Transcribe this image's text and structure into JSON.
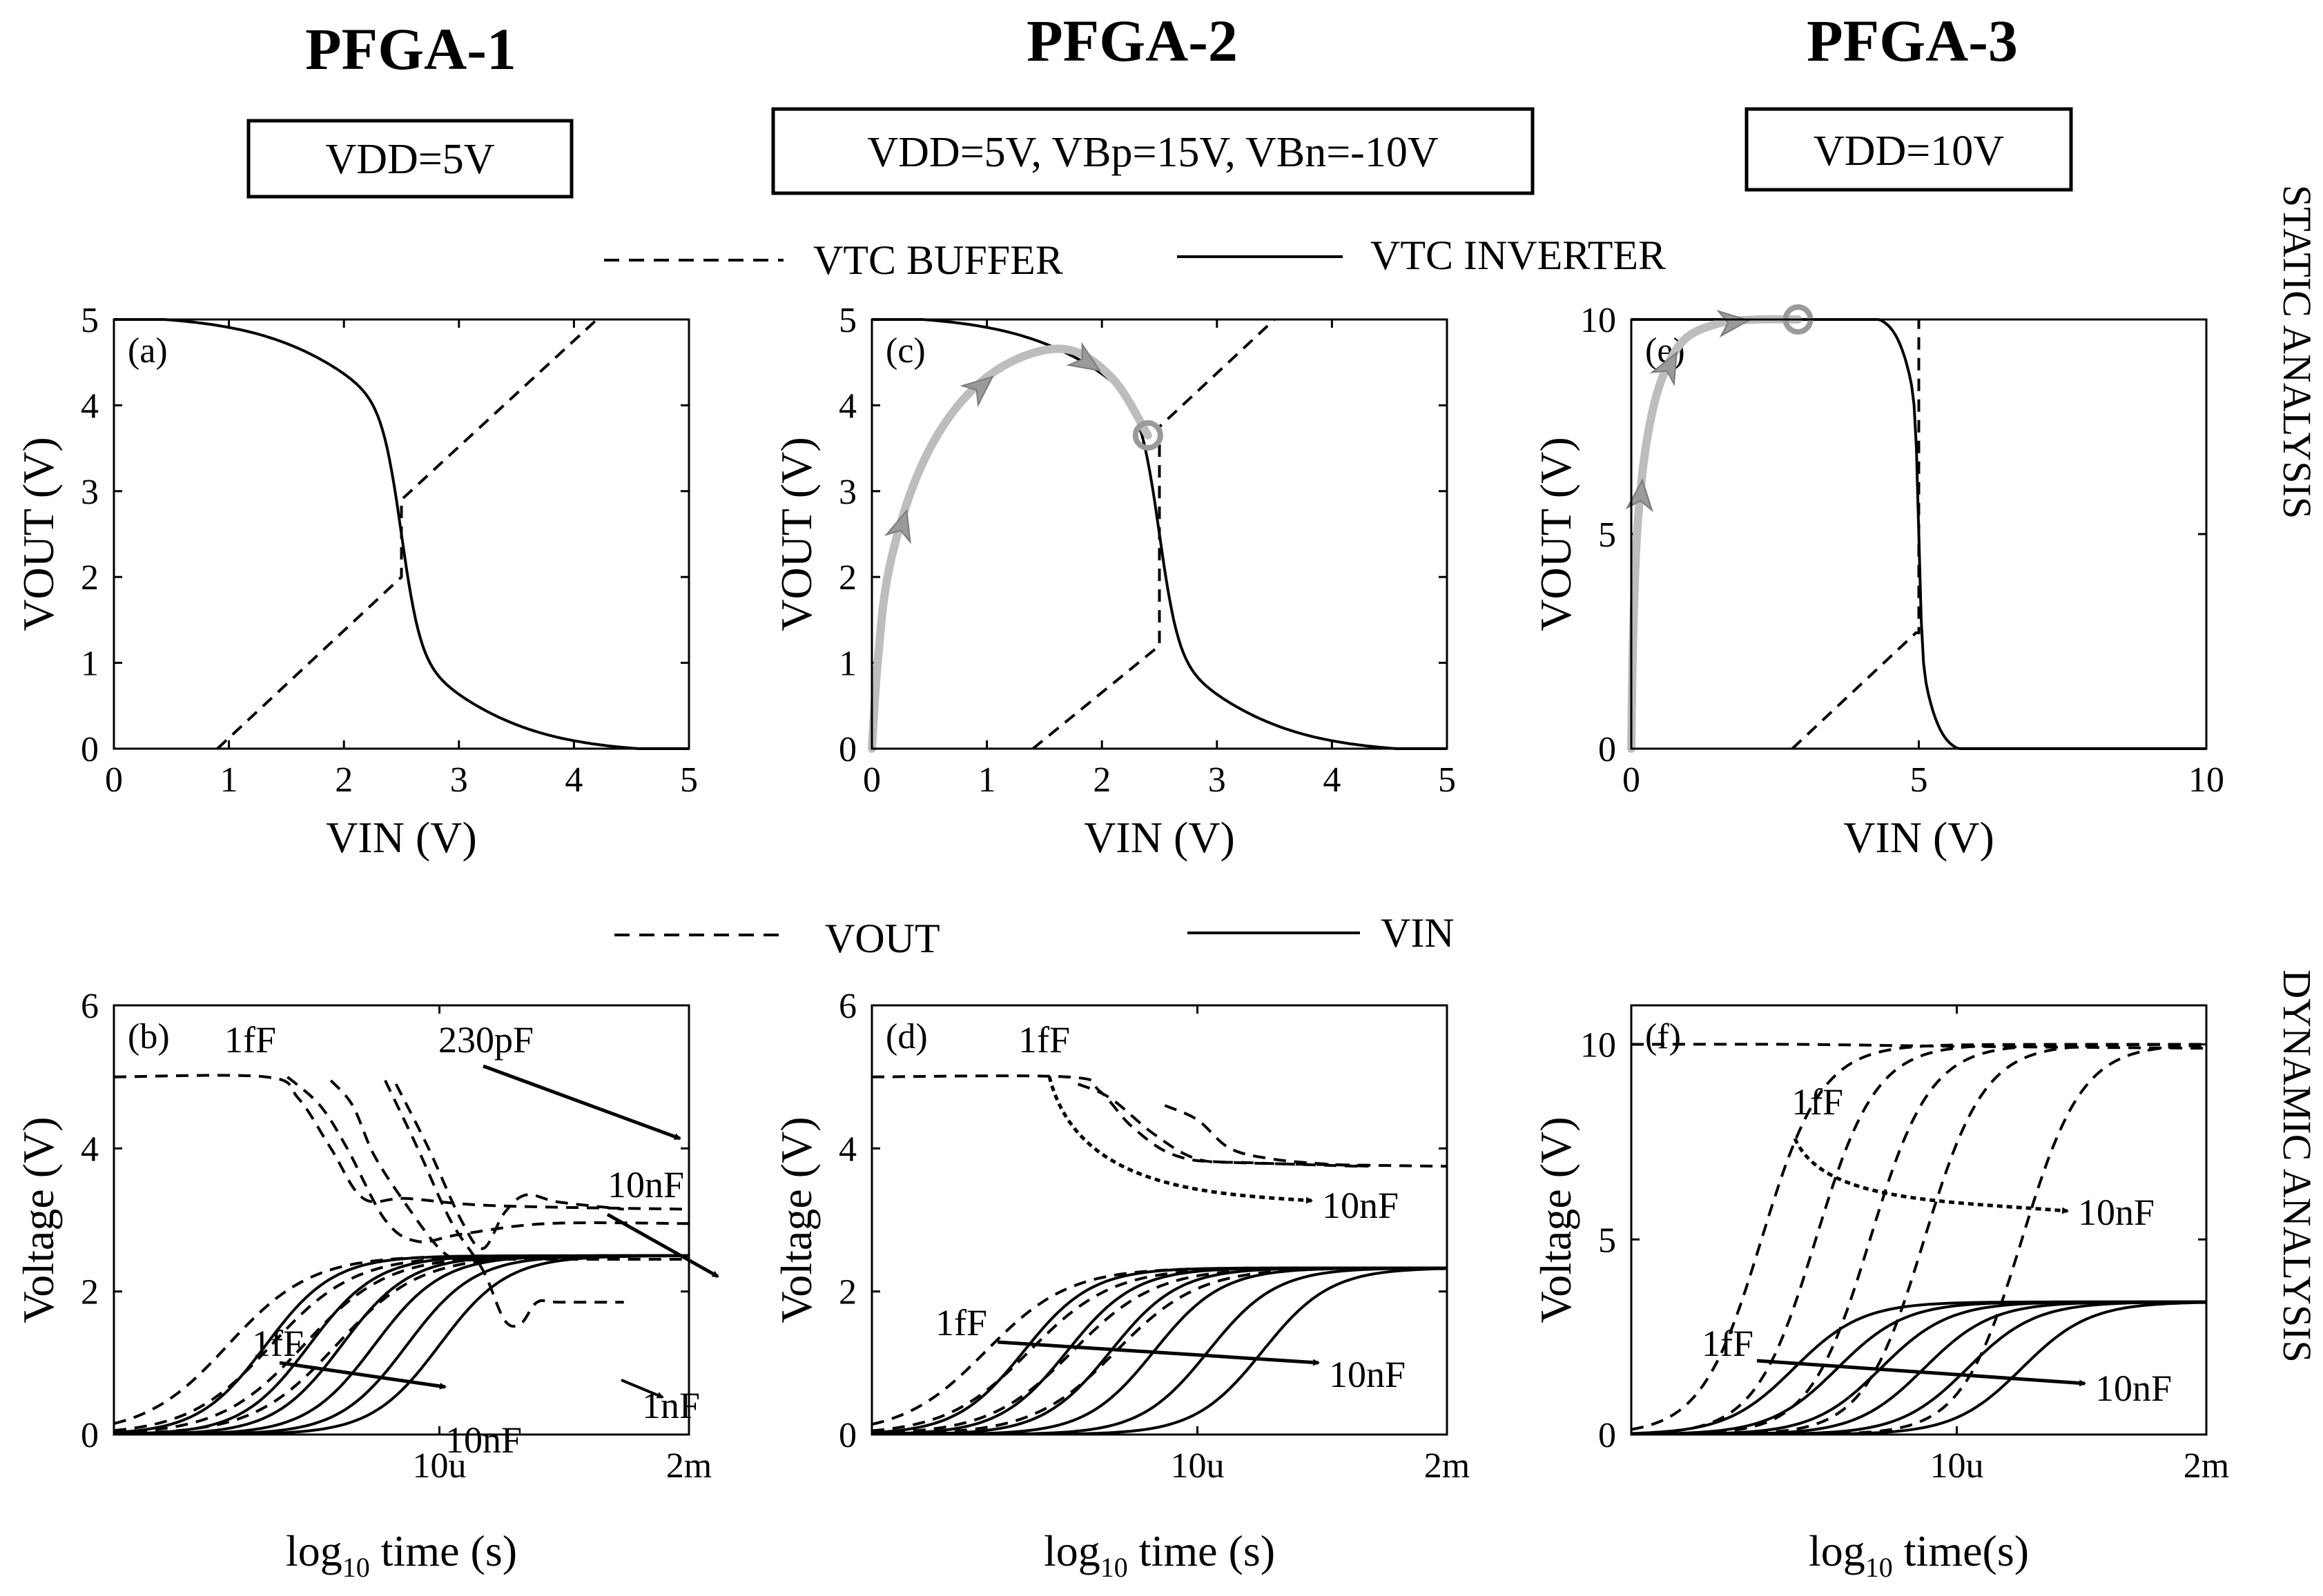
{
  "titles": [
    "PFGA-1",
    "PFGA-2",
    "PFGA-3"
  ],
  "conditions": [
    "VDD=5V",
    "VDD=5V, VBp=15V, VBn=-10V",
    "VDD=10V"
  ],
  "legend_static": {
    "buffer": "VTC BUFFER",
    "inverter": "VTC INVERTER"
  },
  "legend_dynamic": {
    "vout": "VOUT",
    "vin": "VIN"
  },
  "side_labels": {
    "static": "STATIC ANALYSIS",
    "dynamic": "DYNAMIC ANALYSIS"
  },
  "colors": {
    "ink": "#000000",
    "trajectory": "#bdbdbd",
    "trajectory_arrow": "#9a9a9a"
  },
  "chart_data": [
    {
      "id": "a",
      "type": "line",
      "panel_label": "(a)",
      "xlabel": "VIN (V)",
      "ylabel": "VOUT (V)",
      "xlim": [
        0,
        5
      ],
      "ylim": [
        0,
        5
      ],
      "xticks": [
        "0",
        "1",
        "2",
        "3",
        "4",
        "5"
      ],
      "yticks": [
        "0",
        "1",
        "2",
        "3",
        "4",
        "5"
      ],
      "vdd": 5,
      "vm": 2.5,
      "steep": 1.0,
      "series": [
        {
          "name": "VTC INVERTER",
          "style": "solid"
        },
        {
          "name": "VTC BUFFER",
          "style": "dashed",
          "x": [
            0.9,
            2.5,
            2.5,
            4.2
          ],
          "y": [
            0,
            2.0,
            2.9,
            5.0
          ]
        }
      ]
    },
    {
      "id": "c",
      "type": "line",
      "panel_label": "(c)",
      "xlabel": "VIN (V)",
      "ylabel": "VOUT (V)",
      "xlim": [
        0,
        5
      ],
      "ylim": [
        0,
        5
      ],
      "xticks": [
        "0",
        "1",
        "2",
        "3",
        "4",
        "5"
      ],
      "yticks": [
        "0",
        "1",
        "2",
        "3",
        "4",
        "5"
      ],
      "vdd": 5,
      "vm": 2.5,
      "steep": 1.0,
      "series": [
        {
          "name": "VTC INVERTER",
          "style": "solid"
        },
        {
          "name": "VTC BUFFER",
          "style": "dashed",
          "x": [
            1.4,
            2.5,
            2.5,
            3.5
          ],
          "y": [
            0,
            1.2,
            3.75,
            5.0
          ]
        }
      ],
      "trajectory": {
        "x": [
          0.0,
          0.05,
          0.15,
          0.4,
          0.75,
          1.2,
          1.7,
          2.1,
          2.4
        ],
        "y": [
          0.0,
          1.0,
          2.1,
          3.2,
          4.0,
          4.5,
          4.65,
          4.3,
          3.65
        ],
        "end": [
          2.4,
          3.65
        ]
      }
    },
    {
      "id": "e",
      "type": "line",
      "panel_label": "(e)",
      "xlabel": "VIN (V)",
      "ylabel": "VOUT (V)",
      "xlim": [
        0,
        10
      ],
      "ylim": [
        0,
        10
      ],
      "xticks": [
        "0",
        "5",
        "10"
      ],
      "yticks": [
        "0",
        "5",
        "10"
      ],
      "vdd": 10,
      "vm": 5.0,
      "steep": 3.0,
      "series": [
        {
          "name": "VTC INVERTER",
          "style": "solid"
        },
        {
          "name": "VTC BUFFER",
          "style": "dashed",
          "x": [
            2.8,
            4.95,
            5.0,
            5.0
          ],
          "y": [
            0,
            2.7,
            2.7,
            10.0
          ]
        }
      ],
      "trajectory": {
        "x": [
          0.0,
          0.03,
          0.1,
          0.25,
          0.5,
          0.9,
          1.5,
          2.2,
          2.9
        ],
        "y": [
          0.0,
          2.5,
          5.0,
          7.0,
          8.5,
          9.5,
          9.9,
          10.0,
          10.0
        ],
        "end": [
          2.9,
          10.0
        ]
      }
    },
    {
      "id": "b",
      "type": "line",
      "panel_label": "(b)",
      "xlabel": "log10 time (s)",
      "ylabel": "Voltage (V)",
      "xlim": [
        -8,
        -2.7
      ],
      "ylim": [
        0,
        6
      ],
      "xticks": [
        "10u",
        "2m"
      ],
      "xtick_values": [
        -5,
        -2.7
      ],
      "yticks": [
        "0",
        "2",
        "4",
        "6"
      ],
      "series": [
        {
          "name": "VOUT",
          "style": "dashed",
          "cap": "1fF",
          "curve": [
            [
              -8,
              5.0
            ],
            [
              -6.6,
              5.0
            ],
            [
              -6.3,
              4.7
            ],
            [
              -6.0,
              4.0
            ],
            [
              -5.7,
              3.3
            ],
            [
              -5.3,
              3.3
            ],
            [
              -4.5,
              3.2
            ],
            [
              -2.7,
              3.15
            ]
          ]
        },
        {
          "name": "VOUT",
          "style": "dashed",
          "cap": "230pF",
          "curve": [
            [
              -6.4,
              5.0
            ],
            [
              -6.1,
              4.6
            ],
            [
              -5.85,
              4.0
            ],
            [
              -5.5,
              3.0
            ],
            [
              -5.2,
              2.7
            ],
            [
              -4.8,
              2.8
            ],
            [
              -4.0,
              2.95
            ],
            [
              -2.7,
              2.95
            ]
          ]
        },
        {
          "name": "VOUT",
          "style": "dashed",
          "cap": "",
          "curve": [
            [
              -6.0,
              4.95
            ],
            [
              -5.8,
              4.6
            ],
            [
              -5.6,
              3.9
            ],
            [
              -5.3,
              3.2
            ],
            [
              -5.0,
              2.6
            ],
            [
              -4.8,
              2.45
            ],
            [
              -4.4,
              2.45
            ],
            [
              -2.7,
              2.45
            ]
          ]
        },
        {
          "name": "VOUT",
          "style": "dashed",
          "cap": "10nF",
          "curve": [
            [
              -5.5,
              4.95
            ],
            [
              -5.2,
              4.0
            ],
            [
              -4.9,
              3.0
            ],
            [
              -4.6,
              2.3
            ],
            [
              -4.4,
              1.6
            ],
            [
              -4.25,
              1.55
            ],
            [
              -4.1,
              1.85
            ],
            [
              -3.9,
              1.85
            ],
            [
              -3.3,
              1.85
            ]
          ]
        },
        {
          "name": "VOUT",
          "style": "dashed",
          "cap": "1nF",
          "curve": [
            [
              -5.4,
              4.9
            ],
            [
              -5.1,
              4.0
            ],
            [
              -4.8,
              3.0
            ],
            [
              -4.6,
              2.6
            ],
            [
              -4.4,
              3.1
            ],
            [
              -4.2,
              3.35
            ],
            [
              -3.9,
              3.25
            ],
            [
              -3.3,
              3.15
            ]
          ]
        },
        {
          "name": "VIN",
          "style": "solid",
          "final": 2.5,
          "t50": [
            -6.6,
            -6.2,
            -5.9,
            -5.6,
            -5.3,
            -5.0
          ]
        }
      ],
      "annotations": [
        {
          "text": "1fF"
        },
        {
          "text": "230pF"
        },
        {
          "text": "10nF"
        },
        {
          "text": "1nF"
        },
        {
          "text": "1fF"
        },
        {
          "text": "10nF"
        }
      ]
    },
    {
      "id": "d",
      "type": "line",
      "panel_label": "(d)",
      "xlabel": "log10 time (s)",
      "ylabel": "Voltage (V)",
      "xlim": [
        -8,
        -2.7
      ],
      "ylim": [
        0,
        6
      ],
      "xticks": [
        "10u",
        "2m"
      ],
      "xtick_values": [
        -5,
        -2.7
      ],
      "yticks": [
        "0",
        "2",
        "4",
        "6"
      ],
      "series": [
        {
          "name": "VOUT",
          "style": "dashed",
          "cap": "1fF",
          "curve": [
            [
              -8,
              5.0
            ],
            [
              -6.2,
              5.0
            ],
            [
              -5.9,
              4.8
            ],
            [
              -5.6,
              4.3
            ],
            [
              -5.2,
              3.9
            ],
            [
              -4.6,
              3.8
            ],
            [
              -2.7,
              3.75
            ]
          ]
        },
        {
          "name": "VOUT",
          "style": "dashed",
          "cap": "",
          "curve": [
            [
              -6.1,
              4.9
            ],
            [
              -5.8,
              4.7
            ],
            [
              -5.4,
              4.2
            ],
            [
              -5.0,
              3.85
            ],
            [
              -4.5,
              3.8
            ],
            [
              -3.5,
              3.75
            ]
          ]
        },
        {
          "name": "VOUT",
          "style": "dashed",
          "cap": "10nF",
          "curve": [
            [
              -5.3,
              4.6
            ],
            [
              -5.0,
              4.4
            ],
            [
              -4.7,
              4.0
            ],
            [
              -4.3,
              3.85
            ],
            [
              -3.8,
              3.78
            ],
            [
              -3.4,
              3.75
            ]
          ]
        },
        {
          "name": "VIN",
          "style": "solid",
          "final": 2.33,
          "t50": [
            -6.6,
            -6.2,
            -5.8,
            -5.4,
            -4.9,
            -4.4
          ]
        }
      ],
      "annotations": [
        {
          "text": "1fF"
        },
        {
          "text": "10nF"
        },
        {
          "text": "1fF"
        },
        {
          "text": "10nF"
        }
      ]
    },
    {
      "id": "f",
      "type": "line",
      "panel_label": "(f)",
      "xlabel": "log10 time(s)",
      "ylabel": "Voltage (V)",
      "xlim": [
        -8,
        -2.7
      ],
      "ylim": [
        0,
        11
      ],
      "xticks": [
        "10u",
        "2m"
      ],
      "xtick_values": [
        -5,
        -2.7
      ],
      "yticks": [
        "0",
        "5",
        "10"
      ],
      "series": [
        {
          "name": "VOUT",
          "style": "dashed",
          "cap": "1fF",
          "curve": [
            [
              -8,
              10.0
            ],
            [
              -6.5,
              10.0
            ],
            [
              -5.0,
              9.95
            ],
            [
              -2.7,
              9.9
            ]
          ]
        },
        {
          "name": "VIN",
          "style": "solid",
          "final": 3.4,
          "t50": [
            -6.5,
            -6.1,
            -5.7,
            -5.3,
            -4.9,
            -4.4
          ]
        }
      ],
      "dashed_rise": {
        "final": 10.0,
        "t50": [
          -6.8,
          -6.3,
          -5.8,
          -5.3,
          -4.4
        ]
      },
      "annotations": [
        {
          "text": "1fF"
        },
        {
          "text": "10nF"
        },
        {
          "text": "1fF"
        },
        {
          "text": "10nF"
        }
      ]
    }
  ]
}
